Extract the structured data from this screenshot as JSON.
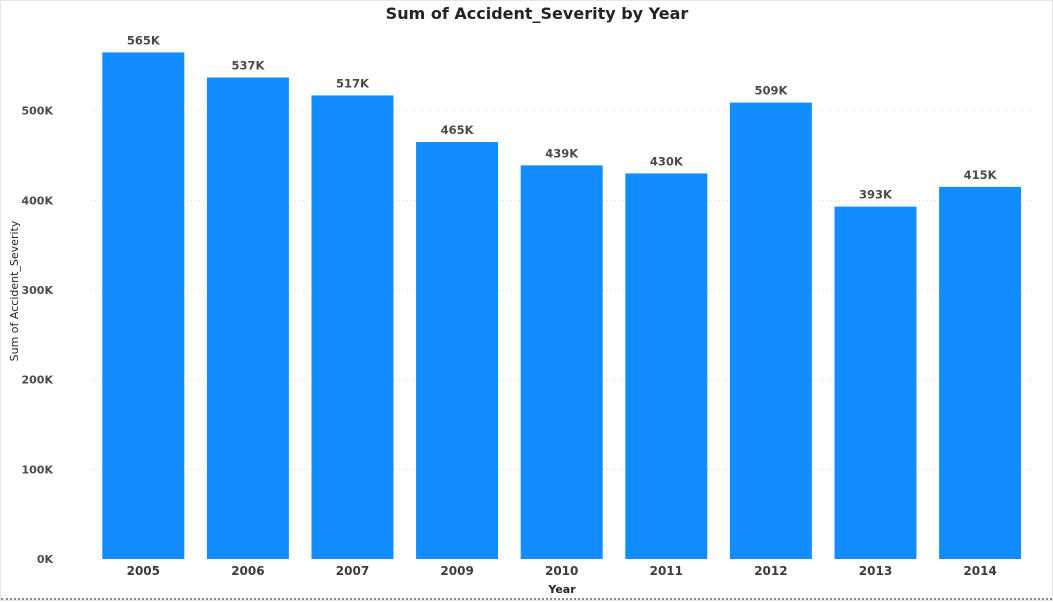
{
  "chart_data": {
    "type": "bar",
    "title": "Sum of Accident_Severity by Year",
    "xlabel": "Year",
    "ylabel": "Sum of Accident_Severity",
    "categories": [
      "2005",
      "2006",
      "2007",
      "2009",
      "2010",
      "2011",
      "2012",
      "2013",
      "2014"
    ],
    "values": [
      565000,
      537000,
      517000,
      465000,
      439000,
      430000,
      509000,
      393000,
      415000
    ],
    "data_labels": [
      "565K",
      "537K",
      "517K",
      "465K",
      "439K",
      "430K",
      "509K",
      "393K",
      "415K"
    ],
    "yticks": [
      0,
      100000,
      200000,
      300000,
      400000,
      500000
    ],
    "ytick_labels": [
      "0K",
      "100K",
      "200K",
      "300K",
      "400K",
      "500K"
    ],
    "ylim": [
      0,
      600000
    ],
    "grid": true,
    "legend": "none",
    "bar_color": "#118DFF"
  }
}
